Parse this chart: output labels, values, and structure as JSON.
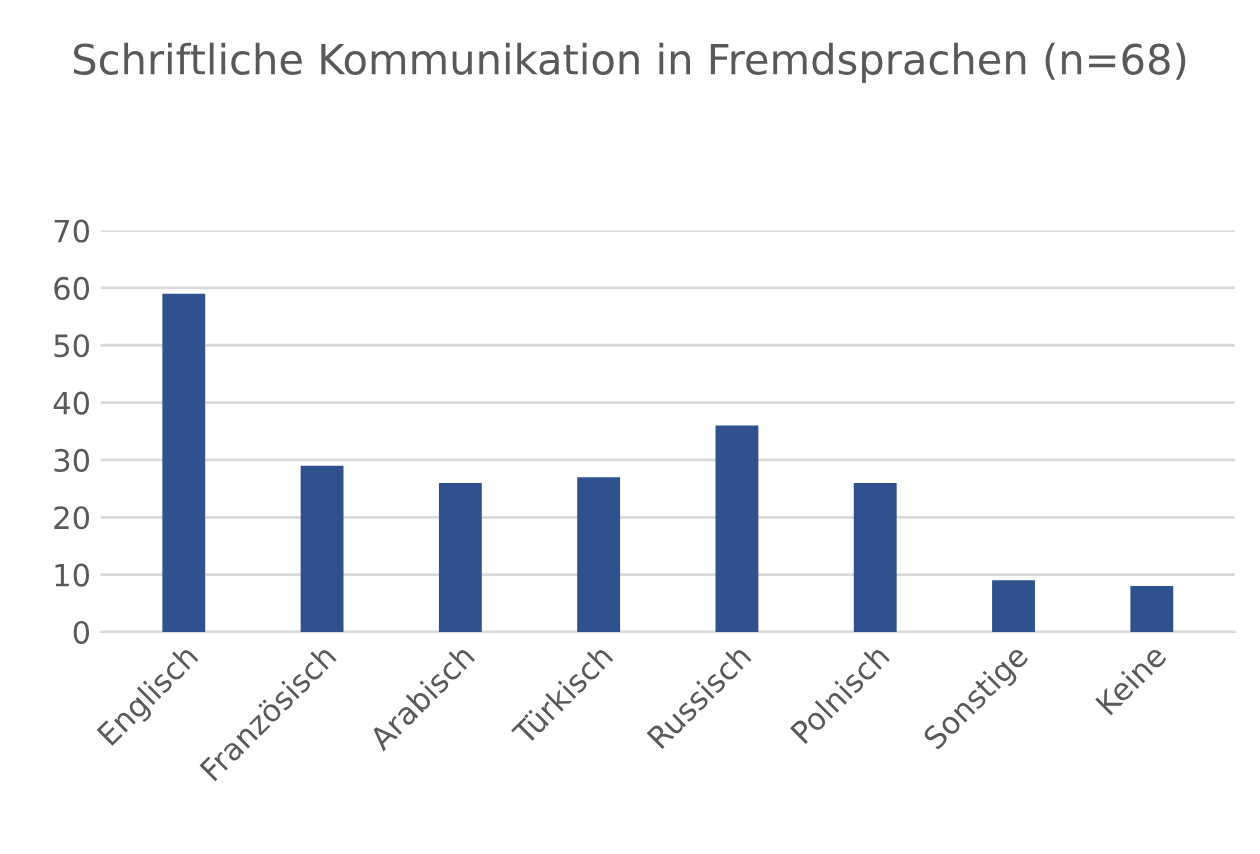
{
  "chart_data": {
    "type": "bar",
    "title": "Schriftliche Kommunikation in Fremdsprachen (n=68)",
    "categories": [
      "Englisch",
      "Französisch",
      "Arabisch",
      "Türkisch",
      "Russisch",
      "Polnisch",
      "Sonstige",
      "Keine"
    ],
    "values": [
      59,
      29,
      26,
      27,
      36,
      26,
      9,
      8
    ],
    "color": "#2f528f",
    "ylim": [
      0,
      70
    ],
    "yticks": [
      0,
      10,
      20,
      30,
      40,
      50,
      60,
      70
    ],
    "grid": "y"
  }
}
